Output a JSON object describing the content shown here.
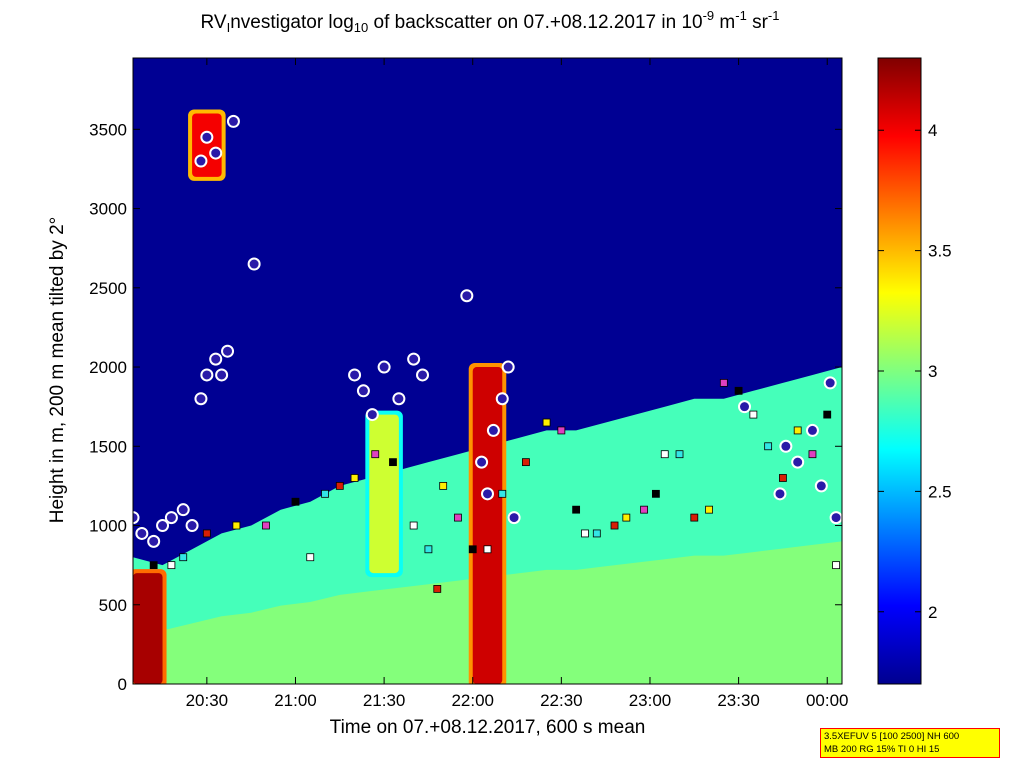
{
  "title": {
    "prefix": "RV",
    "sub1": "I",
    "text1": "nvestigator log",
    "sub2": "10",
    "text2": " of backscatter on 07.+08.12.2017 in 10",
    "sup1": "-9",
    "text3": " m",
    "sup2": "-1",
    "text4": " sr",
    "sup3": "-1"
  },
  "infobox": {
    "line1": "3.5XEFUV 5 [100 2500] NH 600",
    "line2": "MB 200 RG 15% TI 0 HI 15"
  },
  "colors": {
    "colormap": "jet",
    "cloud_marker_edge": "#ffffff",
    "cloud_marker_fill": "#2a1aa8",
    "square_marker_colors": [
      "#000000",
      "#ffffff",
      "#33e6e6",
      "#d81e05",
      "#ffee00",
      "#e040c0"
    ]
  },
  "chart_data": {
    "type": "heatmap",
    "title": "RVInvestigator log10 of backscatter on 07.+08.12.2017 in 10-9 m-1 sr-1",
    "xlabel": "Time on 07.+08.12.2017, 600 s mean",
    "ylabel": "Height in m, 200 m mean tilted by 2°",
    "x_unit": "time of day",
    "xlim": [
      "20:05",
      "00:05"
    ],
    "ylim": [
      0,
      3950
    ],
    "x_ticks": [
      "20:30",
      "21:00",
      "21:30",
      "22:00",
      "22:30",
      "23:00",
      "23:30",
      "00:00"
    ],
    "y_ticks": [
      0,
      500,
      1000,
      1500,
      2000,
      2500,
      3000,
      3500
    ],
    "colorbar": {
      "clim": [
        1.7,
        4.3
      ],
      "ticks": [
        2,
        2.5,
        3,
        3.5,
        4
      ],
      "colormap": "jet"
    },
    "grid": false,
    "legend": "none",
    "background_value": 1.75,
    "boundary_layer_top": [
      [
        "20:05",
        800
      ],
      [
        "20:15",
        750
      ],
      [
        "20:25",
        850
      ],
      [
        "20:35",
        950
      ],
      [
        "20:45",
        1000
      ],
      [
        "20:55",
        1100
      ],
      [
        "21:05",
        1150
      ],
      [
        "21:15",
        1250
      ],
      [
        "21:25",
        1300
      ],
      [
        "21:35",
        1350
      ],
      [
        "21:45",
        1400
      ],
      [
        "21:55",
        1450
      ],
      [
        "22:05",
        1500
      ],
      [
        "22:15",
        1550
      ],
      [
        "22:25",
        1600
      ],
      [
        "22:35",
        1600
      ],
      [
        "22:45",
        1650
      ],
      [
        "22:55",
        1700
      ],
      [
        "23:05",
        1750
      ],
      [
        "23:15",
        1800
      ],
      [
        "23:25",
        1800
      ],
      [
        "23:35",
        1850
      ],
      [
        "23:45",
        1900
      ],
      [
        "23:55",
        1950
      ],
      [
        "00:05",
        2000
      ]
    ],
    "aerosol_layer_value": 2.85,
    "high_backscatter_regions": [
      {
        "time_range": [
          "20:05",
          "20:15"
        ],
        "height_range": [
          0,
          700
        ],
        "value": 4.2
      },
      {
        "time_range": [
          "21:25",
          "21:35"
        ],
        "height_range": [
          700,
          1700
        ],
        "value": 3.2
      },
      {
        "time_range": [
          "22:00",
          "22:10"
        ],
        "height_range": [
          0,
          2000
        ],
        "value": 4.1
      },
      {
        "time_range": [
          "20:25",
          "20:35"
        ],
        "height_range": [
          3200,
          3600
        ],
        "value": 4.0
      }
    ],
    "cloud_base_series": [
      {
        "name": "",
        "marker": "circle",
        "points": [
          [
            "20:05",
            1050
          ],
          [
            "20:08",
            950
          ],
          [
            "20:12",
            900
          ],
          [
            "20:15",
            1000
          ],
          [
            "20:18",
            1050
          ],
          [
            "20:22",
            1100
          ],
          [
            "20:25",
            1000
          ],
          [
            "20:28",
            1800
          ],
          [
            "20:30",
            1950
          ],
          [
            "20:33",
            2050
          ],
          [
            "20:35",
            1950
          ],
          [
            "20:37",
            2100
          ],
          [
            "20:28",
            3300
          ],
          [
            "20:30",
            3450
          ],
          [
            "20:33",
            3350
          ],
          [
            "20:39",
            3550
          ],
          [
            "20:46",
            2650
          ],
          [
            "21:20",
            1950
          ],
          [
            "21:23",
            1850
          ],
          [
            "21:26",
            1700
          ],
          [
            "21:30",
            2000
          ],
          [
            "21:35",
            1800
          ],
          [
            "21:40",
            2050
          ],
          [
            "21:43",
            1950
          ],
          [
            "21:58",
            2450
          ],
          [
            "22:03",
            1400
          ],
          [
            "22:05",
            1200
          ],
          [
            "22:07",
            1600
          ],
          [
            "22:10",
            1800
          ],
          [
            "22:12",
            2000
          ],
          [
            "22:14",
            1050
          ],
          [
            "23:32",
            1750
          ],
          [
            "23:44",
            1200
          ],
          [
            "23:46",
            1500
          ],
          [
            "23:50",
            1400
          ],
          [
            "23:55",
            1600
          ],
          [
            "23:58",
            1250
          ],
          [
            "00:01",
            1900
          ],
          [
            "00:03",
            1050
          ]
        ]
      },
      {
        "name": "",
        "marker": "square",
        "points": [
          [
            "20:12",
            750
          ],
          [
            "20:18",
            750
          ],
          [
            "20:22",
            800
          ],
          [
            "20:30",
            950
          ],
          [
            "20:40",
            1000
          ],
          [
            "20:50",
            1000
          ],
          [
            "21:00",
            1150
          ],
          [
            "21:05",
            800
          ],
          [
            "21:10",
            1200
          ],
          [
            "21:15",
            1250
          ],
          [
            "21:20",
            1300
          ],
          [
            "21:27",
            1450
          ],
          [
            "21:33",
            1400
          ],
          [
            "21:40",
            1000
          ],
          [
            "21:45",
            850
          ],
          [
            "21:48",
            600
          ],
          [
            "21:50",
            1250
          ],
          [
            "21:55",
            1050
          ],
          [
            "22:00",
            850
          ],
          [
            "22:05",
            850
          ],
          [
            "22:10",
            1200
          ],
          [
            "22:18",
            1400
          ],
          [
            "22:25",
            1650
          ],
          [
            "22:30",
            1600
          ],
          [
            "22:35",
            1100
          ],
          [
            "22:38",
            950
          ],
          [
            "22:42",
            950
          ],
          [
            "22:48",
            1000
          ],
          [
            "22:52",
            1050
          ],
          [
            "22:58",
            1100
          ],
          [
            "23:02",
            1200
          ],
          [
            "23:05",
            1450
          ],
          [
            "23:10",
            1450
          ],
          [
            "23:15",
            1050
          ],
          [
            "23:20",
            1100
          ],
          [
            "23:25",
            1900
          ],
          [
            "23:30",
            1850
          ],
          [
            "23:35",
            1700
          ],
          [
            "23:40",
            1500
          ],
          [
            "23:45",
            1300
          ],
          [
            "23:50",
            1600
          ],
          [
            "23:55",
            1450
          ],
          [
            "00:00",
            1700
          ],
          [
            "00:03",
            750
          ]
        ]
      }
    ]
  }
}
